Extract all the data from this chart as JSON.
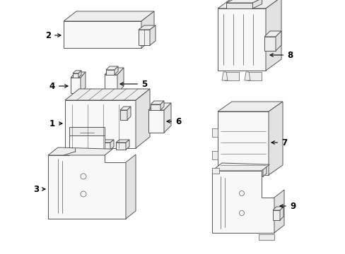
{
  "background_color": "#ffffff",
  "line_color": "#555555",
  "label_color": "#000000",
  "figure_width": 4.89,
  "figure_height": 3.6,
  "dpi": 100,
  "lw": 0.7,
  "face_color": "#f8f8f8",
  "top_color": "#eeeeee",
  "right_color": "#e2e2e2"
}
